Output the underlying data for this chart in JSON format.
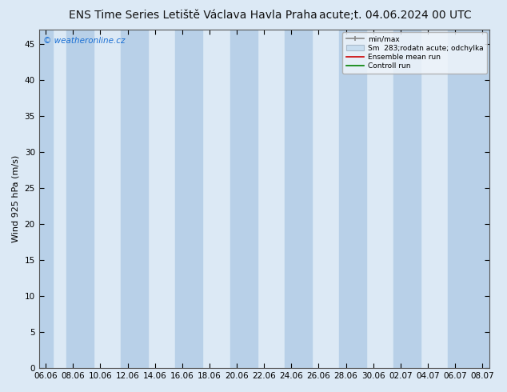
{
  "title_left": "ENS Time Series Letiště Václava Havla Praha",
  "title_right": "acute;t. 04.06.2024 00 UTC",
  "ylabel": "Wind 925 hPa (m/s)",
  "ylim": [
    0,
    47
  ],
  "yticks": [
    0,
    5,
    10,
    15,
    20,
    25,
    30,
    35,
    40,
    45
  ],
  "watermark": "© weatheronline.cz",
  "watermark_color": "#1a6fd4",
  "figure_bg_color": "#dce9f5",
  "plot_bg_color": "#dce9f5",
  "band_color": "#b8d0e8",
  "x_tick_labels": [
    "06.06",
    "08.06",
    "10.06",
    "12.06",
    "14.06",
    "16.06",
    "18.06",
    "20.06",
    "22.06",
    "24.06",
    "26.06",
    "28.06",
    "30.06",
    "02.07",
    "04.07",
    "06.07",
    "08.07"
  ],
  "x_tick_positions": [
    0,
    2,
    4,
    6,
    8,
    10,
    12,
    14,
    16,
    18,
    20,
    22,
    24,
    26,
    28,
    30,
    32
  ],
  "shaded_bands": [
    [
      -0.5,
      0.5
    ],
    [
      1.5,
      3.5
    ],
    [
      5.5,
      7.5
    ],
    [
      9.5,
      11.5
    ],
    [
      13.5,
      15.5
    ],
    [
      17.5,
      19.5
    ],
    [
      21.5,
      23.5
    ],
    [
      25.5,
      27.5
    ],
    [
      29.5,
      31.5
    ],
    [
      31.5,
      32.5
    ]
  ],
  "title_fontsize": 10,
  "axis_fontsize": 8,
  "tick_fontsize": 7.5
}
